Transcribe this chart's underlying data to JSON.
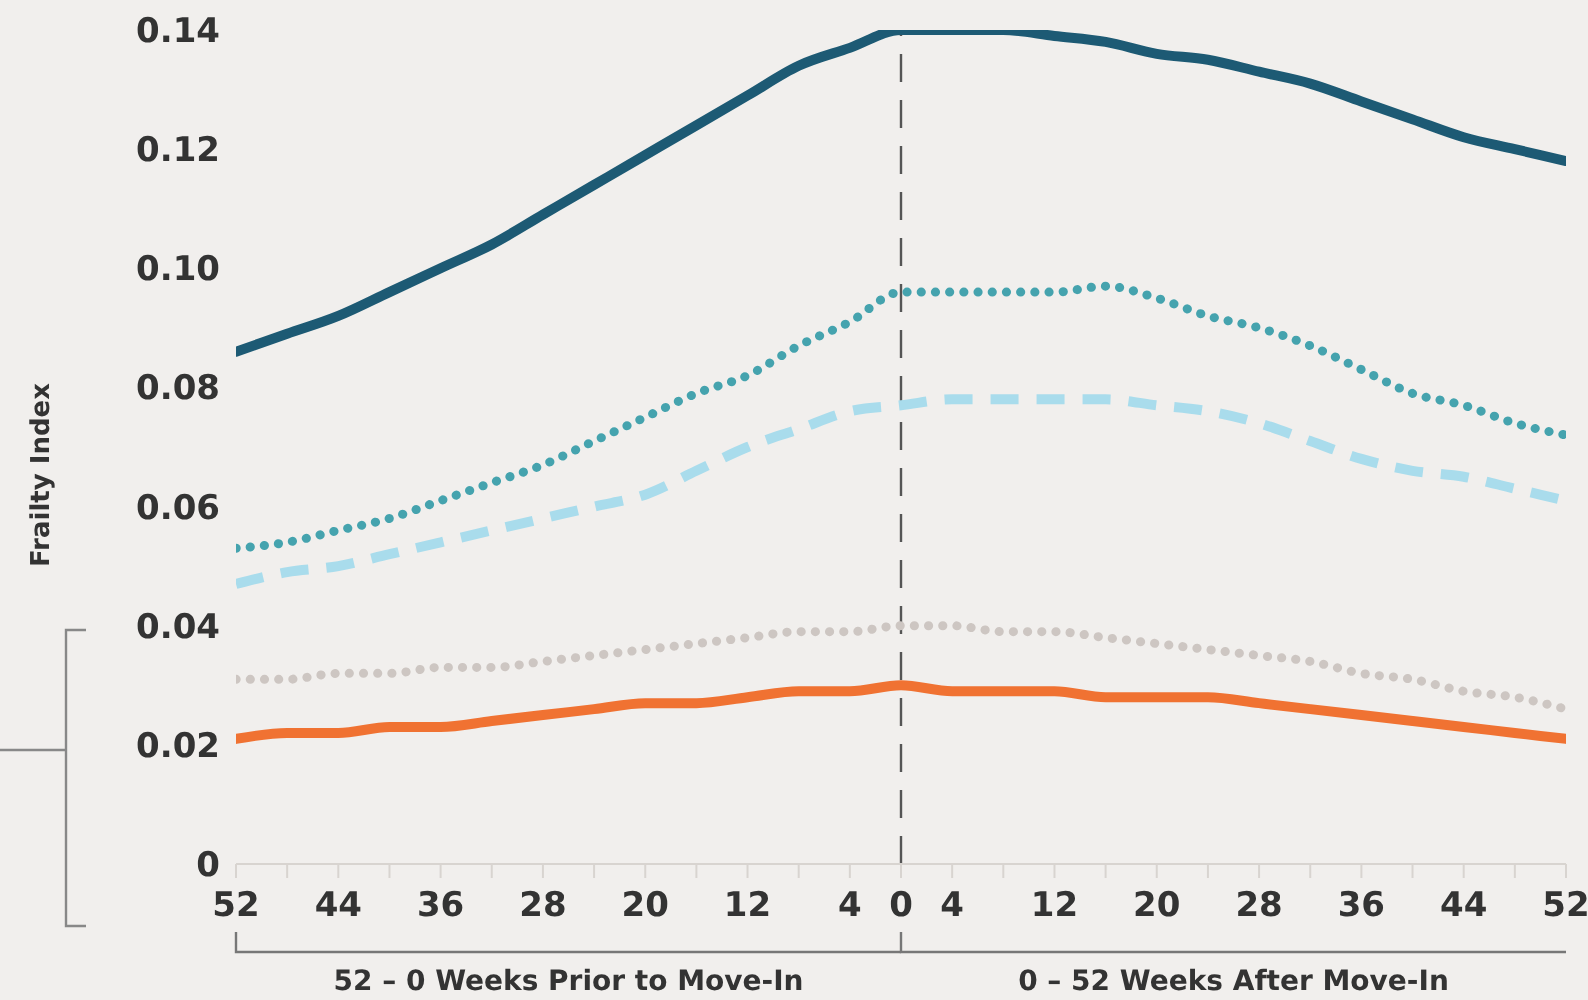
{
  "chart_data": {
    "type": "line",
    "ylabel": "Frailty Index",
    "annotations": [
      "52 – 0 Weeks Prior to Move-In",
      "0 – 52 Weeks After Move-In"
    ],
    "x": [
      -52,
      -48,
      -44,
      -40,
      -36,
      -32,
      -28,
      -24,
      -20,
      -16,
      -12,
      -8,
      -4,
      0,
      4,
      8,
      12,
      16,
      20,
      24,
      28,
      32,
      36,
      40,
      44,
      48,
      52
    ],
    "series": [
      {
        "color": "#1d5a74",
        "line_style": "solid",
        "values": [
          0.086,
          0.089,
          0.092,
          0.096,
          0.1,
          0.104,
          0.109,
          0.114,
          0.119,
          0.124,
          0.129,
          0.134,
          0.137,
          0.14,
          0.14,
          0.14,
          0.139,
          0.138,
          0.136,
          0.135,
          0.133,
          0.131,
          0.128,
          0.125,
          0.122,
          0.12,
          0.118
        ]
      },
      {
        "color": "#45a3ae",
        "line_style": "dotted",
        "values": [
          0.053,
          0.054,
          0.056,
          0.058,
          0.061,
          0.064,
          0.067,
          0.071,
          0.075,
          0.079,
          0.082,
          0.087,
          0.091,
          0.096,
          0.096,
          0.096,
          0.096,
          0.097,
          0.095,
          0.092,
          0.09,
          0.087,
          0.083,
          0.079,
          0.077,
          0.074,
          0.072
        ]
      },
      {
        "color": "#a9dcec",
        "line_style": "dashed",
        "values": [
          0.047,
          0.049,
          0.05,
          0.052,
          0.054,
          0.056,
          0.058,
          0.06,
          0.062,
          0.066,
          0.07,
          0.073,
          0.076,
          0.077,
          0.078,
          0.078,
          0.078,
          0.078,
          0.077,
          0.076,
          0.074,
          0.071,
          0.068,
          0.066,
          0.065,
          0.063,
          0.061
        ]
      },
      {
        "color": "#cdc6c2",
        "line_style": "dotted",
        "values": [
          0.031,
          0.031,
          0.032,
          0.032,
          0.033,
          0.033,
          0.034,
          0.035,
          0.036,
          0.037,
          0.038,
          0.039,
          0.039,
          0.04,
          0.04,
          0.039,
          0.039,
          0.038,
          0.037,
          0.036,
          0.035,
          0.034,
          0.032,
          0.031,
          0.029,
          0.028,
          0.026
        ]
      },
      {
        "color": "#f07232",
        "line_style": "solid",
        "values": [
          0.021,
          0.022,
          0.022,
          0.023,
          0.023,
          0.024,
          0.025,
          0.026,
          0.027,
          0.027,
          0.028,
          0.029,
          0.029,
          0.03,
          0.029,
          0.029,
          0.029,
          0.028,
          0.028,
          0.028,
          0.027,
          0.026,
          0.025,
          0.024,
          0.023,
          0.022,
          0.021
        ]
      }
    ],
    "xlim": [
      -52,
      52
    ],
    "xticks": [
      {
        "value": -52,
        "label": "52"
      },
      {
        "value": -48,
        "label": null
      },
      {
        "value": -44,
        "label": "44"
      },
      {
        "value": -40,
        "label": null
      },
      {
        "value": -36,
        "label": "36"
      },
      {
        "value": -32,
        "label": null
      },
      {
        "value": -28,
        "label": "28"
      },
      {
        "value": -24,
        "label": null
      },
      {
        "value": -20,
        "label": "20"
      },
      {
        "value": -16,
        "label": null
      },
      {
        "value": -12,
        "label": "12"
      },
      {
        "value": -8,
        "label": null
      },
      {
        "value": -4,
        "label": "4"
      },
      0,
      4,
      {
        "value": 8,
        "label": null
      },
      12,
      {
        "value": 16,
        "label": null
      },
      20,
      {
        "value": 24,
        "label": null
      },
      28,
      {
        "value": 32,
        "label": null
      },
      36,
      {
        "value": 40,
        "label": null
      },
      44,
      {
        "value": 48,
        "label": null
      },
      52
    ],
    "ylim": [
      0,
      0.14
    ],
    "yticks": [
      0,
      0.02,
      0.04,
      0.06,
      0.08,
      {
        "value": 0.1,
        "label": "0.10"
      },
      0.12,
      0.14
    ],
    "ref_lines": [
      {
        "axis": "x",
        "value": 0,
        "color": "#555555",
        "line_style": "dashed"
      }
    ],
    "tick_labels": "xy"
  }
}
